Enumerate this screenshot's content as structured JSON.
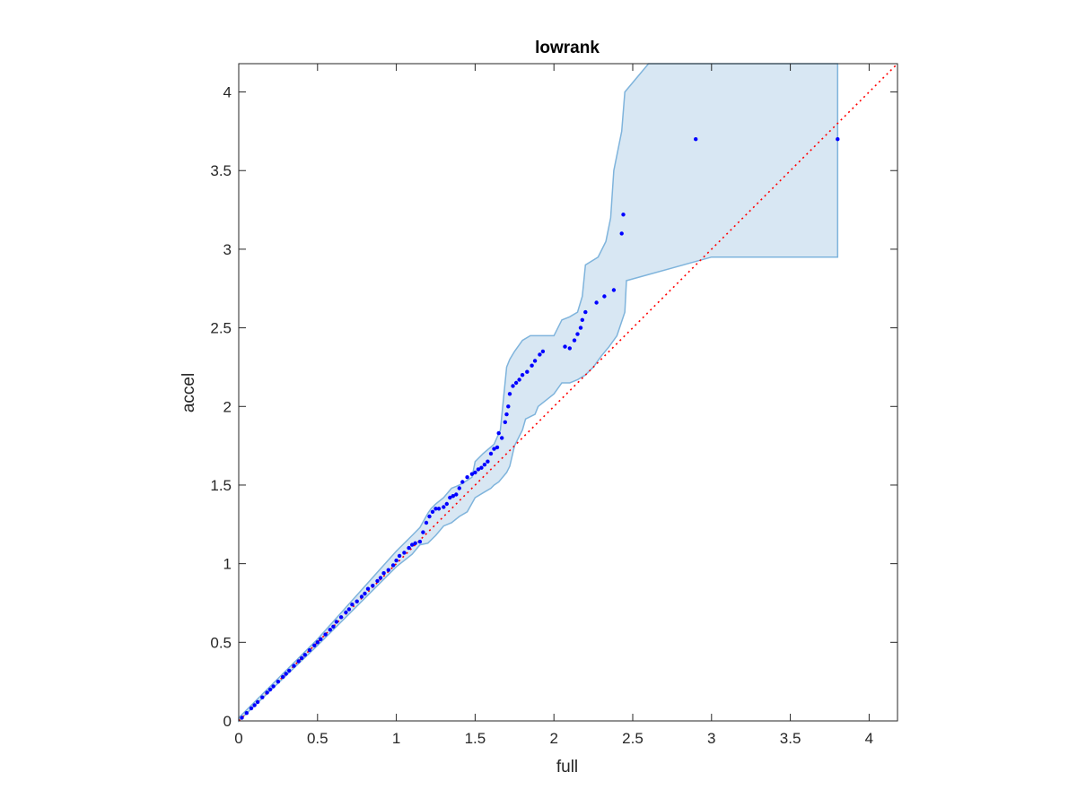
{
  "chart_data": {
    "type": "scatter",
    "title": "lowrank",
    "xlabel": "full",
    "ylabel": "accel",
    "xlim": [
      0,
      4.18
    ],
    "ylim": [
      0,
      4.18
    ],
    "x_ticks": [
      0,
      0.5,
      1,
      1.5,
      2,
      2.5,
      3,
      3.5,
      4
    ],
    "x_tick_labels": [
      "0",
      "0.5",
      "1",
      "1.5",
      "2",
      "2.5",
      "3",
      "3.5",
      "4"
    ],
    "y_ticks": [
      0,
      0.5,
      1,
      1.5,
      2,
      2.5,
      3,
      3.5,
      4
    ],
    "y_tick_labels": [
      "0",
      "0.5",
      "1",
      "1.5",
      "2",
      "2.5",
      "3",
      "3.5",
      "4"
    ],
    "grid": false,
    "legend": null,
    "colors": {
      "points": "#0000ff",
      "band_fill": "#d8e7f3",
      "band_edge": "#7fb4dc",
      "reference_line": "#ff0000",
      "axes": "#262626"
    },
    "reference_line": {
      "style": "dotted",
      "from": [
        0,
        0
      ],
      "to": [
        4.18,
        4.18
      ]
    },
    "series": [
      {
        "kind": "points",
        "x": [
          0.02,
          0.05,
          0.08,
          0.1,
          0.12,
          0.15,
          0.18,
          0.2,
          0.22,
          0.25,
          0.28,
          0.3,
          0.32,
          0.35,
          0.38,
          0.4,
          0.42,
          0.45,
          0.48,
          0.5,
          0.52,
          0.55,
          0.58,
          0.6,
          0.62,
          0.65,
          0.68,
          0.7,
          0.72,
          0.75,
          0.78,
          0.8,
          0.82,
          0.85,
          0.88,
          0.9,
          0.92,
          0.95,
          0.98,
          1.0,
          1.02,
          1.05,
          1.08,
          1.1,
          1.12,
          1.15,
          1.17,
          1.19,
          1.21,
          1.23,
          1.25,
          1.27,
          1.3,
          1.32,
          1.34,
          1.36,
          1.38,
          1.4,
          1.42,
          1.45,
          1.48,
          1.5,
          1.52,
          1.54,
          1.56,
          1.58,
          1.6,
          1.62,
          1.64,
          1.65,
          1.67,
          1.69,
          1.7,
          1.71,
          1.72,
          1.74,
          1.76,
          1.78,
          1.8,
          1.83,
          1.86,
          1.88,
          1.91,
          1.93,
          2.07,
          2.1,
          2.13,
          2.15,
          2.17,
          2.18,
          2.2,
          2.27,
          2.32,
          2.38,
          2.43,
          2.44,
          2.9,
          3.8
        ],
        "y": [
          0.02,
          0.05,
          0.08,
          0.1,
          0.12,
          0.15,
          0.18,
          0.2,
          0.22,
          0.25,
          0.28,
          0.3,
          0.32,
          0.35,
          0.38,
          0.4,
          0.42,
          0.45,
          0.48,
          0.5,
          0.52,
          0.55,
          0.58,
          0.6,
          0.63,
          0.66,
          0.69,
          0.71,
          0.74,
          0.76,
          0.79,
          0.81,
          0.84,
          0.86,
          0.89,
          0.91,
          0.94,
          0.96,
          0.99,
          1.02,
          1.05,
          1.07,
          1.1,
          1.12,
          1.13,
          1.14,
          1.2,
          1.26,
          1.3,
          1.33,
          1.35,
          1.35,
          1.36,
          1.38,
          1.42,
          1.43,
          1.44,
          1.48,
          1.52,
          1.55,
          1.57,
          1.58,
          1.6,
          1.61,
          1.63,
          1.65,
          1.7,
          1.73,
          1.74,
          1.83,
          1.8,
          1.9,
          1.95,
          2.0,
          2.08,
          2.13,
          2.15,
          2.17,
          2.2,
          2.22,
          2.26,
          2.29,
          2.33,
          2.35,
          2.38,
          2.37,
          2.42,
          2.46,
          2.5,
          2.55,
          2.6,
          2.66,
          2.7,
          2.74,
          3.1,
          3.22,
          3.7,
          3.7
        ]
      },
      {
        "kind": "confidence_band",
        "x_upper": [
          0,
          0.5,
          1.0,
          1.1,
          1.15,
          1.2,
          1.22,
          1.25,
          1.3,
          1.35,
          1.4,
          1.45,
          1.48,
          1.5,
          1.55,
          1.62,
          1.66,
          1.7,
          1.72,
          1.75,
          1.8,
          1.85,
          2.0,
          2.05,
          2.1,
          2.15,
          2.18,
          2.2,
          2.28,
          2.33,
          2.36,
          2.38,
          2.43,
          2.45,
          2.6,
          2.9,
          3.8
        ],
        "y_upper": [
          0.02,
          0.52,
          1.08,
          1.18,
          1.23,
          1.32,
          1.35,
          1.38,
          1.42,
          1.48,
          1.5,
          1.53,
          1.55,
          1.65,
          1.7,
          1.76,
          1.85,
          2.25,
          2.3,
          2.35,
          2.42,
          2.45,
          2.45,
          2.55,
          2.57,
          2.6,
          2.7,
          2.9,
          2.95,
          3.05,
          3.2,
          3.5,
          3.75,
          4.0,
          4.18,
          4.18,
          4.18
        ],
        "x_lower": [
          0,
          0.5,
          1.0,
          1.1,
          1.15,
          1.2,
          1.25,
          1.3,
          1.35,
          1.4,
          1.45,
          1.5,
          1.55,
          1.6,
          1.62,
          1.65,
          1.7,
          1.72,
          1.75,
          1.8,
          1.82,
          1.88,
          1.9,
          2.0,
          2.05,
          2.1,
          2.15,
          2.2,
          2.25,
          2.3,
          2.35,
          2.4,
          2.45,
          2.46,
          3.0,
          3.8
        ],
        "y_lower": [
          0,
          0.48,
          0.98,
          1.06,
          1.12,
          1.13,
          1.18,
          1.24,
          1.26,
          1.3,
          1.33,
          1.42,
          1.45,
          1.48,
          1.5,
          1.52,
          1.58,
          1.62,
          1.75,
          1.85,
          1.92,
          1.95,
          2.0,
          2.08,
          2.15,
          2.15,
          2.17,
          2.2,
          2.25,
          2.32,
          2.38,
          2.45,
          2.6,
          2.8,
          2.95,
          2.95
        ]
      }
    ]
  }
}
